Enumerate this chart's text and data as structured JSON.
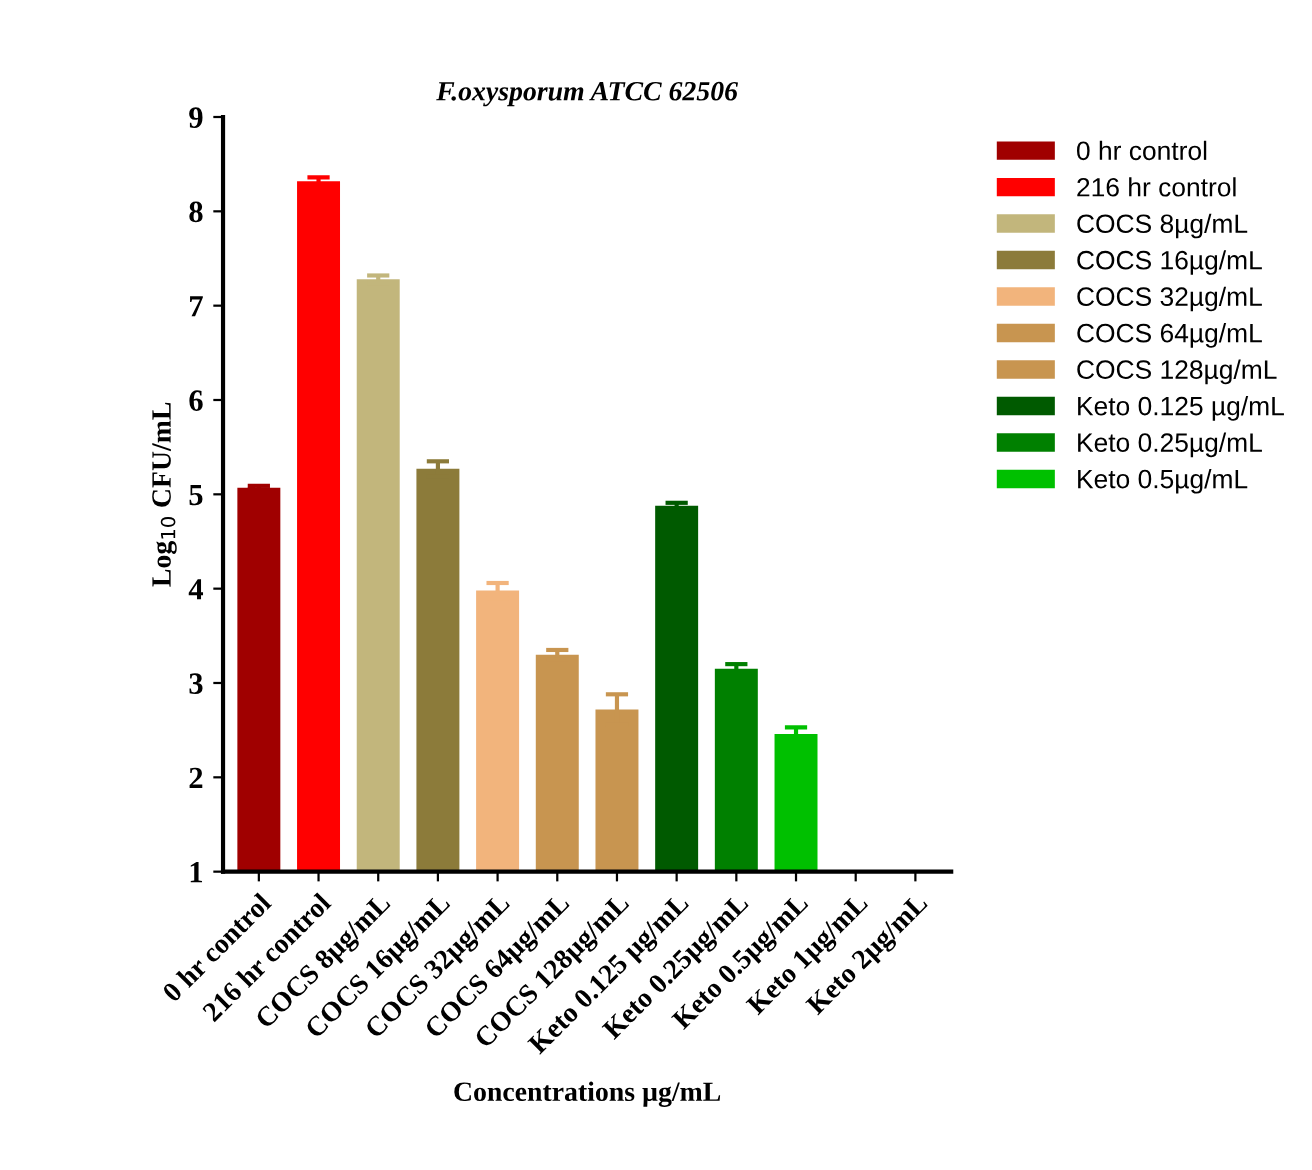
{
  "chart_data": {
    "type": "bar",
    "title": "F.oxysporum ATCC 62506",
    "xlabel": "Concentrations µg/mL",
    "ylabel": "Log$_{10}$ CFU/mL",
    "categories": [
      "0 hr control",
      "216 hr control",
      "COCS 8µg/mL",
      "COCS 16µg/mL",
      "COCS 32µg/mL",
      "COCS 64µg/mL",
      "COCS 128µg/mL",
      "Keto 0.125 µg/mL",
      "Keto 0.25µg/mL",
      "Keto 0.5µg/mL",
      "Keto 1µg/mL",
      "Keto 2µg/mL"
    ],
    "series": [
      {
        "name": "0 hr control",
        "color": "#a00000",
        "values": [
          5.07,
          null,
          null,
          null,
          null,
          null,
          null,
          null,
          null,
          null,
          null,
          null
        ],
        "errors": [
          0.02,
          null,
          null,
          null,
          null,
          null,
          null,
          null,
          null,
          null,
          null,
          null
        ]
      },
      {
        "name": "216 hr control",
        "color": "#ff0000",
        "values": [
          null,
          8.32,
          null,
          null,
          null,
          null,
          null,
          null,
          null,
          null,
          null,
          null
        ],
        "errors": [
          null,
          0.04,
          null,
          null,
          null,
          null,
          null,
          null,
          null,
          null,
          null,
          null
        ]
      },
      {
        "name": "COCS 8µg/mL",
        "color": "#c2b67c",
        "values": [
          null,
          null,
          7.28,
          null,
          null,
          null,
          null,
          null,
          null,
          null,
          null,
          null
        ],
        "errors": [
          null,
          null,
          0.04,
          null,
          null,
          null,
          null,
          null,
          null,
          null,
          null,
          null
        ]
      },
      {
        "name": "COCS 16µg/mL",
        "color": "#8c7b3a",
        "values": [
          null,
          null,
          null,
          5.27,
          null,
          null,
          null,
          null,
          null,
          null,
          null,
          null
        ],
        "errors": [
          null,
          null,
          null,
          0.08,
          null,
          null,
          null,
          null,
          null,
          null,
          null,
          null
        ]
      },
      {
        "name": "COCS 32µg/mL",
        "color": "#f2b47c",
        "values": [
          null,
          null,
          null,
          null,
          3.98,
          null,
          null,
          null,
          null,
          null,
          null,
          null
        ],
        "errors": [
          null,
          null,
          null,
          null,
          0.08,
          null,
          null,
          null,
          null,
          null,
          null,
          null
        ]
      },
      {
        "name": "COCS 64µg/mL",
        "color": "#c89550",
        "values": [
          null,
          null,
          null,
          null,
          null,
          3.3,
          null,
          null,
          null,
          null,
          null,
          null
        ],
        "errors": [
          null,
          null,
          null,
          null,
          null,
          0.05,
          null,
          null,
          null,
          null,
          null,
          null
        ]
      },
      {
        "name": "COCS 128µg/mL",
        "color": "#c89550",
        "values": [
          null,
          null,
          null,
          null,
          null,
          null,
          2.72,
          null,
          null,
          null,
          null,
          null
        ],
        "errors": [
          null,
          null,
          null,
          null,
          null,
          null,
          0.16,
          null,
          null,
          null,
          null,
          null
        ]
      },
      {
        "name": "Keto 0.125 µg/mL",
        "color": "#005a00",
        "values": [
          null,
          null,
          null,
          null,
          null,
          null,
          null,
          4.88,
          null,
          null,
          null,
          null
        ],
        "errors": [
          null,
          null,
          null,
          null,
          null,
          null,
          null,
          0.03,
          null,
          null,
          null,
          null
        ]
      },
      {
        "name": "Keto 0.25µg/mL",
        "color": "#008000",
        "values": [
          null,
          null,
          null,
          null,
          null,
          null,
          null,
          null,
          3.15,
          null,
          null,
          null
        ],
        "errors": [
          null,
          null,
          null,
          null,
          null,
          null,
          null,
          null,
          0.05,
          null,
          null,
          null
        ]
      },
      {
        "name": "Keto 0.5µg/mL",
        "color": "#00c000",
        "values": [
          null,
          null,
          null,
          null,
          null,
          null,
          null,
          null,
          null,
          2.46,
          null,
          null
        ],
        "errors": [
          null,
          null,
          null,
          null,
          null,
          null,
          null,
          null,
          null,
          0.07,
          null,
          null
        ]
      }
    ],
    "ylim": [
      1,
      9
    ],
    "yticks": [
      1,
      2,
      3,
      4,
      5,
      6,
      7,
      8,
      9
    ],
    "grid": false,
    "legend": "right"
  }
}
